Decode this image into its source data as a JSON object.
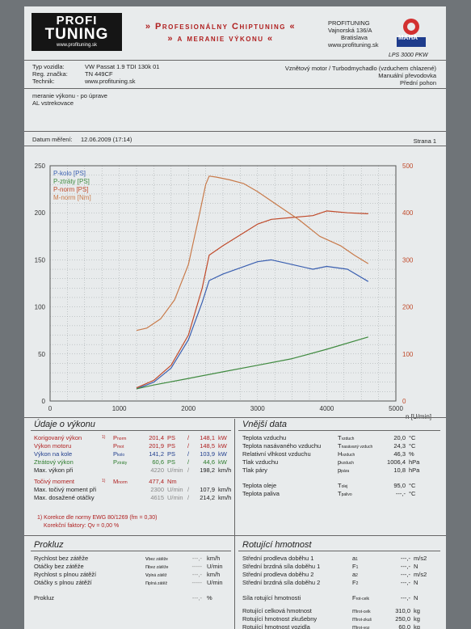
{
  "header": {
    "logo_line1": "PROFI",
    "logo_line2": "TUNING",
    "logo_url": "www.profituning.sk",
    "title_line1": "» Profesionálny Chiptuning «",
    "title_line2": "» a meranie výkonu «",
    "company": [
      "PROFITUNING",
      "Vajnorská 136/A",
      "Bratislava",
      "www.profituning.sk"
    ],
    "maha_brand": "MAHA",
    "dyno_model": "LPS 3000 PKW"
  },
  "vehicle": {
    "type_label": "Typ vozidla:",
    "type_value": "VW Passat 1.9 TDI 130k 01",
    "reg_label": "Reg. značka:",
    "reg_value": "TN 449CF",
    "tech_label": "Technik:",
    "tech_value": "www.profituning.sk",
    "engine": "Vznětový motor / Turbodmychadlo (vzduchem chlazené)",
    "gearbox": "Manuální převodovka",
    "drive": "Přední pohon"
  },
  "notes": [
    "meranie výkonu - po úprave",
    "AL vstrekovace"
  ],
  "measurement": {
    "date_label": "Datum měření:",
    "date_value": "12.06.2009 (17:14)",
    "page": "Strana 1"
  },
  "chart_data": {
    "type": "line",
    "x_unit": "n [U/min]",
    "xlim": [
      0,
      5000
    ],
    "x_ticks": [
      0,
      1000,
      2000,
      3000,
      4000,
      5000
    ],
    "ylim_left": [
      0,
      250
    ],
    "y_ticks_left": [
      0,
      50,
      100,
      150,
      200,
      250
    ],
    "ylim_right": [
      0,
      500
    ],
    "y_ticks_right": [
      0,
      100,
      200,
      300,
      400,
      500
    ],
    "legend_position": "top-left",
    "series": [
      {
        "name": "P-kolo [PS]",
        "color": "#3a5fb0",
        "axis": "left",
        "x": [
          1250,
          1500,
          1750,
          2000,
          2200,
          2300,
          2500,
          3000,
          3200,
          3500,
          3800,
          4000,
          4300,
          4600
        ],
        "y": [
          13,
          20,
          35,
          65,
          105,
          128,
          135,
          148,
          150,
          145,
          140,
          143,
          140,
          127
        ]
      },
      {
        "name": "P-ztráty [PS]",
        "color": "#3f8a3f",
        "axis": "left",
        "x": [
          1250,
          1500,
          2000,
          2500,
          3000,
          3500,
          4000,
          4600
        ],
        "y": [
          13,
          17,
          24,
          31,
          38,
          45,
          55,
          68
        ]
      },
      {
        "name": "P-norm [PS]",
        "color": "#c04a2a",
        "axis": "left",
        "x": [
          1250,
          1500,
          1750,
          2000,
          2200,
          2300,
          2500,
          3000,
          3200,
          3500,
          3800,
          4000,
          4300,
          4600
        ],
        "y": [
          14,
          22,
          38,
          70,
          120,
          155,
          165,
          188,
          193,
          195,
          197,
          202,
          200,
          199
        ]
      },
      {
        "name": "M-norm [Nm]",
        "color": "#c87a4a",
        "axis": "right",
        "x": [
          1250,
          1400,
          1600,
          1800,
          2000,
          2150,
          2250,
          2300,
          2400,
          2600,
          2800,
          3000,
          3300,
          3600,
          3900,
          4200,
          4400,
          4600
        ],
        "y": [
          150,
          155,
          175,
          215,
          290,
          390,
          460,
          478,
          476,
          470,
          462,
          445,
          415,
          385,
          350,
          330,
          310,
          292
        ]
      }
    ]
  },
  "udaje": {
    "title": "Údaje o výkonu",
    "rows": [
      {
        "label": "Korigovaný výkon",
        "mark": "1)",
        "sym": "P",
        "sub": "norm",
        "v1": "201,4",
        "u1": "PS",
        "sep": "/",
        "v2": "148,1",
        "u2": "kW",
        "cls": "r"
      },
      {
        "label": "Výkon motoru",
        "mark": "",
        "sym": "P",
        "sub": "mot",
        "v1": "201,9",
        "u1": "PS",
        "sep": "/",
        "v2": "148,5",
        "u2": "kW",
        "cls": "r"
      },
      {
        "label": "Výkon na kole",
        "mark": "",
        "sym": "P",
        "sub": "kolo",
        "v1": "141,2",
        "u1": "PS",
        "sep": "/",
        "v2": "103,9",
        "u2": "kW",
        "cls": "b"
      },
      {
        "label": "Ztrátový výkon",
        "mark": "",
        "sym": "P",
        "sub": "ztráty",
        "v1": "60,6",
        "u1": "PS",
        "sep": "/",
        "v2": "44,6",
        "u2": "kW",
        "cls": "g"
      },
      {
        "label": "Max. výkon při",
        "mark": "",
        "sym": "",
        "sub": "",
        "v1": "4220",
        "u1": "U/min",
        "sep": "/",
        "v2": "198,2",
        "u2": "km/h",
        "cls": ""
      },
      {
        "label": "Točivý moment",
        "mark": "1)",
        "sym": "M",
        "sub": "norm",
        "v1": "477,4",
        "u1": "Nm",
        "sep": "",
        "v2": "",
        "u2": "",
        "cls": "r"
      },
      {
        "label": "Max. točivý moment při",
        "mark": "",
        "sym": "",
        "sub": "",
        "v1": "2300",
        "u1": "U/min",
        "sep": "/",
        "v2": "107,9",
        "u2": "km/h",
        "cls": ""
      },
      {
        "label": "Max. dosažené otáčky",
        "mark": "",
        "sym": "",
        "sub": "",
        "v1": "4615",
        "u1": "U/min",
        "sep": "/",
        "v2": "214,2",
        "u2": "km/h",
        "cls": ""
      }
    ],
    "korekce": "1) Korekce dle normy EWG 80/1269 (fm = 0,30)",
    "faktor": "Korekční faktory: Qv = 0,00 %"
  },
  "vnejsi": {
    "title": "Vnější data",
    "rows": [
      {
        "label": "Teplota vzduchu",
        "sym": "T",
        "sub": "vzduch",
        "val": "20,0",
        "unit": "°C"
      },
      {
        "label": "Teplota nasávaného vzduchu",
        "sym": "T",
        "sub": "nasávaný vzduch",
        "val": "24,3",
        "unit": "°C"
      },
      {
        "label": "Relativní vlhkost vzduchu",
        "sym": "H",
        "sub": "vzduch",
        "val": "46,3",
        "unit": "%"
      },
      {
        "label": "Tlak vzduchu",
        "sym": "p",
        "sub": "vzduch",
        "val": "1006,4",
        "unit": "hPa"
      },
      {
        "label": "Tlak páry",
        "sym": "p",
        "sub": "pára",
        "val": "10,8",
        "unit": "hPa"
      },
      {
        "label": "Teplota oleje",
        "sym": "T",
        "sub": "olej",
        "val": "95,0",
        "unit": "°C"
      },
      {
        "label": "Teplota paliva",
        "sym": "T",
        "sub": "palivo",
        "val": "---,-",
        "unit": "°C"
      }
    ]
  },
  "prokluz": {
    "title": "Prokluz",
    "rows": [
      {
        "label": "Rychlost bez zátěže",
        "sym": "v",
        "sub": "bez zátěže",
        "val": "---,-",
        "unit": "km/h"
      },
      {
        "label": "Otáčky bez zátěže",
        "sym": "n",
        "sub": "bez zátěže",
        "val": "-----",
        "unit": "U/min"
      },
      {
        "label": "Rychlost s plnou zátěží",
        "sym": "v",
        "sub": "plná zátěž",
        "val": "---,-",
        "unit": "km/h"
      },
      {
        "label": "Otáčky s plnou zátěží",
        "sym": "n",
        "sub": "plná zátěž",
        "val": "-----",
        "unit": "U/min"
      },
      {
        "label": "Prokluz",
        "sym": "",
        "sub": "",
        "val": "---,-",
        "unit": "%"
      }
    ]
  },
  "rotujici": {
    "title": "Rotující hmotnost",
    "rows": [
      {
        "label": "Střední prodleva doběhu 1",
        "sym": "a",
        "sub": "1",
        "val": "---,-",
        "unit": "m/s2"
      },
      {
        "label": "Střední brzdná síla doběhu 1",
        "sym": "F",
        "sub": "1",
        "val": "---,-",
        "unit": "N"
      },
      {
        "label": "Střední prodleva doběhu 2",
        "sym": "a",
        "sub": "2",
        "val": "---,-",
        "unit": "m/s2"
      },
      {
        "label": "Střední brzdná síla doběhu 2",
        "sym": "F",
        "sub": "2",
        "val": "---,-",
        "unit": "N"
      },
      {
        "label": "Síla rotující hmotnosti",
        "sym": "F",
        "sub": "rot-celk",
        "val": "---,-",
        "unit": "N"
      },
      {
        "label": "Rotující celková hmotnost",
        "sym": "m",
        "sub": "rot-celk",
        "val": "310,0",
        "unit": "kg"
      },
      {
        "label": "Rotující hmotnost zkušebny",
        "sym": "m",
        "sub": "rot-zkuš",
        "val": "250,0",
        "unit": "kg"
      },
      {
        "label": "Rotující hmotnost vozidla",
        "sym": "m",
        "sub": "rot-voz",
        "val": "60,0",
        "unit": "kg"
      }
    ]
  }
}
